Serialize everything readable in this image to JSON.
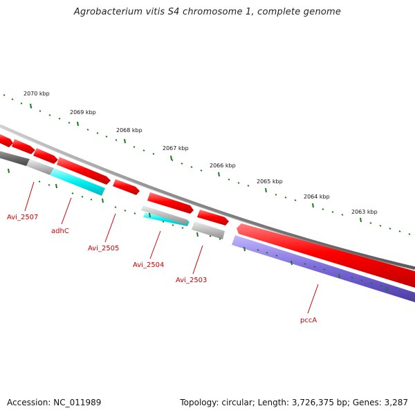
{
  "title": "Agrobacterium vitis S4 chromosome 1, complete genome",
  "footer": {
    "accession": "Accession: NC_011989",
    "summary": "Topology: circular; Length: 3,726,375 bp; Genes: 3,287"
  },
  "colors": {
    "forward_gene": "#ff0000",
    "reverse_gene_gray": "#bdbdbd",
    "adhC_gene": "#00e5ee",
    "pccA_gene": "#7b68d9",
    "backbone": "#8a8a8a",
    "tick": "#1a7a1a",
    "label": "#cc0000"
  },
  "kbp_ticks": [
    "2070 kbp",
    "2069 kbp",
    "2068 kbp",
    "2067 kbp",
    "2066 kbp",
    "2065 kbp",
    "2064 kbp",
    "2063 kbp"
  ],
  "genes": [
    {
      "name": "Avi_2507",
      "color": "gray"
    },
    {
      "name": "adhC",
      "color": "cyan"
    },
    {
      "name": "Avi_2505",
      "color": "red"
    },
    {
      "name": "Avi_2504",
      "color": "cyan-gray"
    },
    {
      "name": "Avi_2503",
      "color": "gray"
    },
    {
      "name": "pccA",
      "color": "purple"
    }
  ]
}
